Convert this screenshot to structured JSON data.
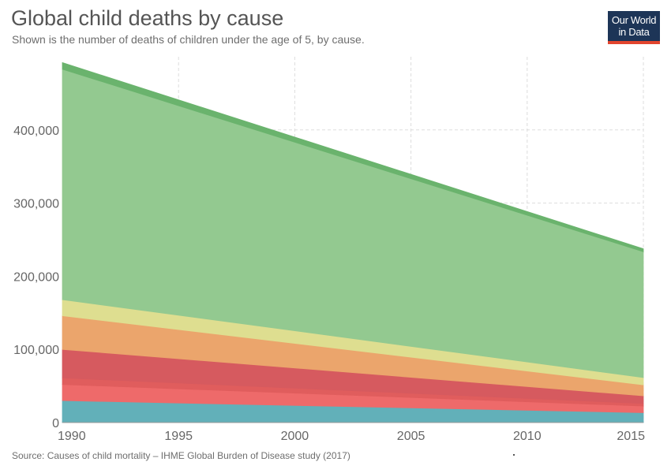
{
  "header": {
    "title": "Global child deaths by cause",
    "subtitle": "Shown is the number of deaths of children under the age of 5, by cause."
  },
  "logo": {
    "line1": "Our World",
    "line2": "in Data"
  },
  "footer": {
    "source": "Source: Causes of child mortality – IHME Global Burden of Disease study (2017)"
  },
  "chart_data": {
    "type": "area",
    "stacked": true,
    "title": "Global child deaths by cause",
    "subtitle": "Shown is the number of deaths of children under the age of 5, by cause.",
    "xlabel": "",
    "ylabel": "",
    "x": [
      1990,
      2015
    ],
    "xlim": [
      1990,
      2015
    ],
    "ylim": [
      0,
      500000
    ],
    "x_ticks": [
      "1990",
      "1995",
      "2000",
      "2005",
      "2010",
      "2015"
    ],
    "y_ticks": [
      "0",
      "100,000",
      "200,000",
      "300,000",
      "400,000"
    ],
    "y_tick_values": [
      0,
      100000,
      200000,
      300000,
      400000
    ],
    "grid": true,
    "series": [
      {
        "color": "#4a909a",
        "values": [
          1000,
          500
        ]
      },
      {
        "color": "#62b0b9",
        "values": [
          29000,
          13000
        ]
      },
      {
        "color": "#ee6a6a",
        "values": [
          22000,
          9000
        ]
      },
      {
        "color": "#e05d5d",
        "values": [
          9000,
          3500
        ]
      },
      {
        "color": "#d65a5f",
        "values": [
          39000,
          10500
        ]
      },
      {
        "color": "#eba56c",
        "values": [
          46000,
          15000
        ]
      },
      {
        "color": "#dede90",
        "values": [
          22000,
          10000
        ]
      },
      {
        "color": "#93c990",
        "values": [
          315000,
          172000
        ]
      },
      {
        "color": "#6ab36d",
        "values": [
          9000,
          4000
        ]
      }
    ]
  }
}
